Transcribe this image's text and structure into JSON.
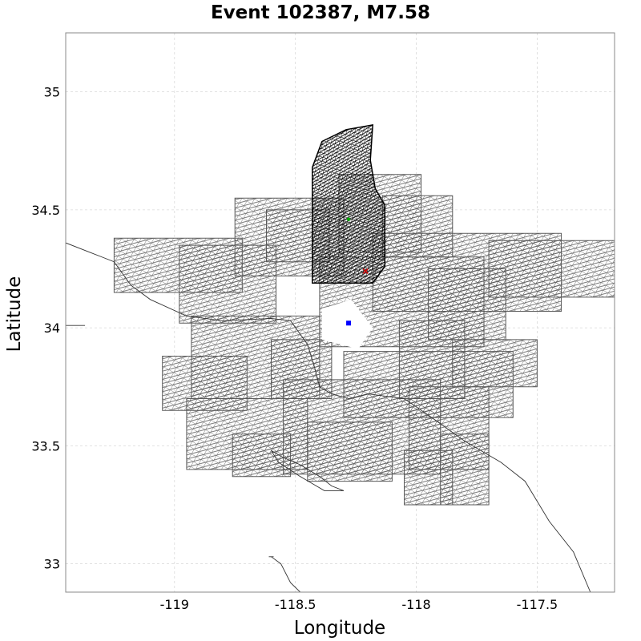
{
  "title": "Event 102387, M7.58",
  "xlabel": "Longitude",
  "ylabel": "Latitude",
  "colors": {
    "rupture_mesh": "#000000",
    "faults_mesh": "#5a5a5a",
    "coastline": "#333333",
    "grid": "#d9d9d9",
    "hypocenter": "#cc0000",
    "centroid": "#00aa00",
    "site": "#0000ff"
  },
  "chart_data": {
    "type": "scatter",
    "title": "Event 102387, M7.58",
    "xlabel": "Longitude",
    "ylabel": "Latitude",
    "xlim": [
      -119.45,
      -117.18
    ],
    "ylim": [
      32.88,
      35.25
    ],
    "xticks": [
      -119,
      -118.5,
      -118,
      -117.5
    ],
    "xtick_labels": [
      "-119",
      "-118.5",
      "-118",
      "-117.5"
    ],
    "yticks": [
      33,
      33.5,
      34,
      34.5,
      35
    ],
    "ytick_labels": [
      "33",
      "33.5",
      "34",
      "34.5",
      "35"
    ],
    "grid": true,
    "points": [
      {
        "x": -118.21,
        "y": 34.24,
        "color": "#cc0000",
        "marker": "x"
      },
      {
        "x": -118.28,
        "y": 34.46,
        "color": "#00aa00",
        "marker": "dot"
      },
      {
        "x": -118.28,
        "y": 34.02,
        "color": "#0000ff",
        "marker": "square"
      }
    ],
    "rupture_outline": [
      [
        -118.43,
        34.19
      ],
      [
        -118.43,
        34.68
      ],
      [
        -118.39,
        34.79
      ],
      [
        -118.29,
        34.84
      ],
      [
        -118.18,
        34.86
      ],
      [
        -118.19,
        34.71
      ],
      [
        -118.17,
        34.59
      ],
      [
        -118.13,
        34.52
      ],
      [
        -118.13,
        34.26
      ],
      [
        -118.18,
        34.19
      ]
    ],
    "fault_patches": [
      [
        [
          -118.75,
          34.55
        ],
        [
          -118.3,
          34.55
        ],
        [
          -118.3,
          34.22
        ],
        [
          -118.75,
          34.22
        ]
      ],
      [
        [
          -118.4,
          34.3
        ],
        [
          -117.72,
          34.3
        ],
        [
          -117.72,
          33.92
        ],
        [
          -118.4,
          33.92
        ]
      ],
      [
        [
          -118.62,
          34.5
        ],
        [
          -118.36,
          34.5
        ],
        [
          -118.36,
          34.28
        ],
        [
          -118.62,
          34.28
        ]
      ],
      [
        [
          -119.25,
          34.38
        ],
        [
          -118.72,
          34.38
        ],
        [
          -118.72,
          34.15
        ],
        [
          -119.25,
          34.15
        ]
      ],
      [
        [
          -118.98,
          34.35
        ],
        [
          -118.58,
          34.35
        ],
        [
          -118.58,
          34.02
        ],
        [
          -118.98,
          34.02
        ]
      ],
      [
        [
          -118.32,
          34.65
        ],
        [
          -117.98,
          34.65
        ],
        [
          -117.98,
          34.32
        ],
        [
          -118.32,
          34.32
        ]
      ],
      [
        [
          -118.14,
          34.56
        ],
        [
          -117.85,
          34.56
        ],
        [
          -117.85,
          34.3
        ],
        [
          -118.14,
          34.3
        ]
      ],
      [
        [
          -118.18,
          34.4
        ],
        [
          -117.4,
          34.4
        ],
        [
          -117.4,
          34.07
        ],
        [
          -118.18,
          34.07
        ]
      ],
      [
        [
          -117.95,
          34.25
        ],
        [
          -117.63,
          34.25
        ],
        [
          -117.63,
          33.95
        ],
        [
          -117.95,
          33.95
        ]
      ],
      [
        [
          -117.7,
          34.37
        ],
        [
          -117.18,
          34.37
        ],
        [
          -117.18,
          34.13
        ],
        [
          -117.7,
          34.13
        ]
      ],
      [
        [
          -118.93,
          34.05
        ],
        [
          -118.4,
          34.05
        ],
        [
          -118.4,
          33.7
        ],
        [
          -118.93,
          33.7
        ]
      ],
      [
        [
          -119.05,
          33.88
        ],
        [
          -118.7,
          33.88
        ],
        [
          -118.7,
          33.65
        ],
        [
          -119.05,
          33.65
        ]
      ],
      [
        [
          -118.6,
          33.95
        ],
        [
          -118.35,
          33.95
        ],
        [
          -118.35,
          33.7
        ],
        [
          -118.6,
          33.7
        ]
      ],
      [
        [
          -118.55,
          33.78
        ],
        [
          -117.9,
          33.78
        ],
        [
          -117.9,
          33.38
        ],
        [
          -118.55,
          33.38
        ]
      ],
      [
        [
          -118.3,
          33.9
        ],
        [
          -117.6,
          33.9
        ],
        [
          -117.6,
          33.62
        ],
        [
          -118.3,
          33.62
        ]
      ],
      [
        [
          -118.07,
          34.03
        ],
        [
          -117.8,
          34.03
        ],
        [
          -117.8,
          33.7
        ],
        [
          -118.07,
          33.7
        ]
      ],
      [
        [
          -117.85,
          33.95
        ],
        [
          -117.5,
          33.95
        ],
        [
          -117.5,
          33.75
        ],
        [
          -117.85,
          33.75
        ]
      ],
      [
        [
          -118.95,
          33.7
        ],
        [
          -118.45,
          33.7
        ],
        [
          -118.45,
          33.4
        ],
        [
          -118.95,
          33.4
        ]
      ],
      [
        [
          -118.76,
          33.55
        ],
        [
          -118.52,
          33.55
        ],
        [
          -118.52,
          33.37
        ],
        [
          -118.76,
          33.37
        ]
      ],
      [
        [
          -118.45,
          33.6
        ],
        [
          -118.1,
          33.6
        ],
        [
          -118.1,
          33.35
        ],
        [
          -118.45,
          33.35
        ]
      ],
      [
        [
          -118.03,
          33.75
        ],
        [
          -117.7,
          33.75
        ],
        [
          -117.7,
          33.4
        ],
        [
          -118.03,
          33.4
        ]
      ],
      [
        [
          -117.9,
          33.55
        ],
        [
          -117.7,
          33.55
        ],
        [
          -117.7,
          33.25
        ],
        [
          -117.9,
          33.25
        ]
      ],
      [
        [
          -118.05,
          33.48
        ],
        [
          -117.85,
          33.48
        ],
        [
          -117.85,
          33.25
        ],
        [
          -118.05,
          33.25
        ]
      ]
    ],
    "center_hole": [
      [
        -118.39,
        34.08
      ],
      [
        -118.27,
        34.12
      ],
      [
        -118.18,
        34.0
      ],
      [
        -118.24,
        33.91
      ],
      [
        -118.39,
        33.95
      ]
    ],
    "coastlines": [
      [
        [
          -119.45,
          34.36
        ],
        [
          -119.35,
          34.32
        ],
        [
          -119.25,
          34.28
        ],
        [
          -119.18,
          34.18
        ],
        [
          -119.1,
          34.12
        ],
        [
          -118.95,
          34.05
        ],
        [
          -118.8,
          34.03
        ],
        [
          -118.6,
          34.04
        ],
        [
          -118.52,
          34.03
        ],
        [
          -118.45,
          33.93
        ],
        [
          -118.42,
          33.83
        ],
        [
          -118.4,
          33.75
        ],
        [
          -118.35,
          33.72
        ],
        [
          -118.28,
          33.7
        ],
        [
          -118.2,
          33.72
        ],
        [
          -118.05,
          33.7
        ],
        [
          -117.95,
          33.63
        ],
        [
          -117.8,
          33.52
        ],
        [
          -117.65,
          33.43
        ],
        [
          -117.55,
          33.35
        ],
        [
          -117.45,
          33.18
        ],
        [
          -117.35,
          33.05
        ],
        [
          -117.28,
          32.88
        ]
      ],
      [
        [
          -119.45,
          34.01
        ],
        [
          -119.4,
          34.01
        ],
        [
          -119.37,
          34.01
        ]
      ],
      [
        [
          -118.6,
          33.48
        ],
        [
          -118.55,
          33.45
        ],
        [
          -118.48,
          33.42
        ],
        [
          -118.4,
          33.37
        ],
        [
          -118.35,
          33.33
        ],
        [
          -118.3,
          33.31
        ],
        [
          -118.38,
          33.31
        ],
        [
          -118.48,
          33.37
        ],
        [
          -118.57,
          33.43
        ],
        [
          -118.6,
          33.48
        ]
      ],
      [
        [
          -118.6,
          33.03
        ],
        [
          -118.56,
          33.0
        ],
        [
          -118.52,
          32.92
        ],
        [
          -118.48,
          32.88
        ]
      ],
      [
        [
          -118.59,
          33.03
        ],
        [
          -118.61,
          33.03
        ]
      ]
    ]
  }
}
